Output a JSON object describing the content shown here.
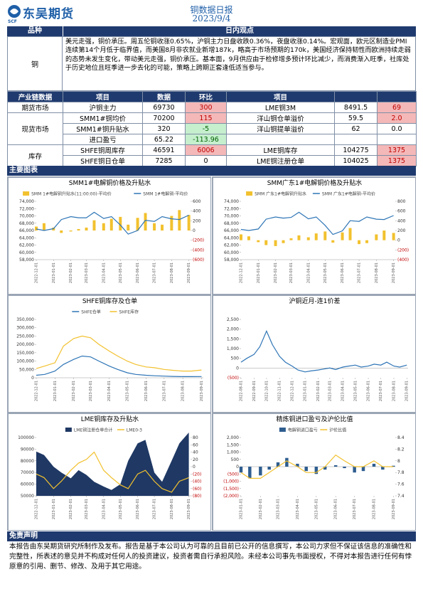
{
  "header": {
    "logo_text": "东吴期货",
    "logo_sub": "SCF",
    "title": "铜数据日报",
    "date": "2023/9/4"
  },
  "view": {
    "headers": [
      "品种",
      "日内观点"
    ],
    "commodity": "铜",
    "text": "美元走强，铜价承压。周五伦铜收涨0.65%，沪铜主力日盘收跌0.36%，夜盘收涨0.14%。宏观面，欧元区制造业PMI连续第14个月低于临界值，而美国8月非农就业新增187k，略高于市场预期的170k，美国经济保持韧性而欧洲持续走弱的态势未发生变化，带动美元走强，铜价承压。基本面，9月供应由于检修增多预计环比减少，而消费渐入旺季，社库处于历史地位且旺季进一步去化的可能，策略上跨期正套逢低适当参与。"
  },
  "industry_table": {
    "headers": [
      "产业链数据",
      "项目",
      "数据",
      "环比",
      "项目"
    ],
    "up_color": "#f4b8b8",
    "up_text_color": "#c00000",
    "down_color": "#c6efce",
    "down_text_color": "#006100",
    "groups": [
      {
        "name": "期货市场",
        "rows": [
          [
            "沪铜主力",
            "69730",
            "300",
            "LME铜3M",
            "8491.5",
            "69"
          ]
        ]
      },
      {
        "name": "现货市场",
        "rows": [
          [
            "SMM1#铜均价",
            "70200",
            "115",
            "洋山铜仓单溢价",
            "59.5",
            "2.0"
          ],
          [
            "SMM1#铜升贴水",
            "320",
            "-5",
            "洋山铜提单溢价",
            "62",
            "0.0"
          ],
          [
            "进口盈亏",
            "65.22",
            "-113.96"
          ]
        ]
      },
      {
        "name": "库存",
        "rows": [
          [
            "SHFE铜周库存",
            "46591",
            "6006",
            "LME铜库存",
            "104275",
            "1375"
          ],
          [
            "SHFE铜日仓单",
            "7285",
            "0",
            "LME铜注册仓单",
            "104025",
            "1375"
          ]
        ]
      }
    ]
  },
  "charts_heading": "主要图表",
  "disclaimer": {
    "heading": "免责声明",
    "text": "本报告由东吴期货研究所制作及发布。报告是基于本公司认为可靠的且目前已公开的信息撰写，本公司力求但不保证该信息的准确性和完整性，所表述的意见并不构成对任何人的投资建议，投资者需自行承担风险。未经本公司事先书面授权，不得对本报告进行任何有悖原意的引用、删节、修改、及用于其它用途。"
  },
  "chart_data": [
    {
      "type": "combo",
      "title": "SMM1#电解铜价格及升贴水",
      "negative_tick_color": "#c00000",
      "x": [
        "2022-12-01",
        "2022-12-15",
        "2023-01-01",
        "2023-01-15",
        "2023-02-01",
        "2023-02-15",
        "2023-03-01",
        "2023-03-15",
        "2023-04-01",
        "2023-04-15",
        "2023-05-01",
        "2023-05-15",
        "2023-06-01",
        "2023-06-15",
        "2023-07-01",
        "2023-07-15",
        "2023-08-01",
        "2023-08-15",
        "2023-09-01"
      ],
      "xlim": [
        "2022-12-01",
        "2023-09-04"
      ],
      "xticks": [
        "2022-12-01",
        "2023-01-01",
        "2023-02-01",
        "2023-03-01",
        "2023-04-01",
        "2023-05-01",
        "2023-06-01",
        "2023-07-01",
        "2023-08-01",
        "2023-09-01"
      ],
      "ylim": [
        58000,
        74000
      ],
      "yticks": [
        {
          "value": 58000,
          "label": "58,000"
        },
        {
          "value": 60000,
          "label": "60,000"
        },
        {
          "value": 62000,
          "label": "62,000"
        },
        {
          "value": 64000,
          "label": "64,000"
        },
        {
          "value": 66000,
          "label": "66,000"
        },
        {
          "value": 68000,
          "label": "68,000"
        },
        {
          "value": 70000,
          "label": "70,000"
        },
        {
          "value": 72000,
          "label": "72,000"
        },
        {
          "value": 74000,
          "label": "74,000"
        }
      ],
      "y2lim": [
        -600,
        600
      ],
      "y2ticks": [
        {
          "value": -600,
          "label": "(600)"
        },
        {
          "value": -400,
          "label": "(400)"
        },
        {
          "value": -200,
          "label": "(200)"
        },
        0,
        200,
        400,
        600
      ],
      "series": [
        {
          "name": "SMM 1#电解铜升贴水(11:00:00)-平均价",
          "type": "bar",
          "axis": "y2",
          "color": "#f2c12e",
          "values": [
            80,
            150,
            60,
            -50,
            -20,
            30,
            60,
            210,
            150,
            240,
            280,
            120,
            260,
            360,
            150,
            120,
            300,
            420,
            320
          ]
        },
        {
          "name": "SMM 1#电解铜-平均价",
          "type": "line",
          "color": "#2e75b6",
          "values": [
            66400,
            66000,
            66500,
            69000,
            69800,
            69500,
            69500,
            71000,
            69300,
            69800,
            67500,
            65000,
            66000,
            68800,
            68500,
            69800,
            69200,
            69000,
            70200
          ]
        }
      ]
    },
    {
      "type": "combo",
      "title": "SMM广东1#电解铜价格及升贴水",
      "negative_tick_color": "#c00000",
      "x": [
        "2022-12-01",
        "2022-12-15",
        "2023-01-01",
        "2023-01-15",
        "2023-02-01",
        "2023-02-15",
        "2023-03-01",
        "2023-03-15",
        "2023-04-01",
        "2023-04-15",
        "2023-05-01",
        "2023-05-15",
        "2023-06-01",
        "2023-06-15",
        "2023-07-01",
        "2023-07-15",
        "2023-08-01",
        "2023-08-15",
        "2023-09-01"
      ],
      "xlim": [
        "2022-12-01",
        "2023-09-04"
      ],
      "xticks": [
        "2022-12-01",
        "2023-01-01",
        "2023-02-01",
        "2023-03-01",
        "2023-04-01",
        "2023-05-01",
        "2023-06-01",
        "2023-07-01",
        "2023-08-01",
        "2023-09-01"
      ],
      "ylim": [
        58000,
        74000
      ],
      "yticks": [
        {
          "value": 58000,
          "label": "58,000"
        },
        {
          "value": 60000,
          "label": "60,000"
        },
        {
          "value": 62000,
          "label": "62,000"
        },
        {
          "value": 64000,
          "label": "64,000"
        },
        {
          "value": 66000,
          "label": "66,000"
        },
        {
          "value": 68000,
          "label": "68,000"
        },
        {
          "value": 70000,
          "label": "70,000"
        },
        {
          "value": 72000,
          "label": "72,000"
        },
        {
          "value": 74000,
          "label": "74,000"
        }
      ],
      "y2lim": [
        -400,
        800
      ],
      "y2ticks": [
        {
          "value": -400,
          "label": "(400)"
        },
        {
          "value": -200,
          "label": "(200)"
        },
        0,
        200,
        400,
        600,
        800
      ],
      "series": [
        {
          "name": "SMM 广东1#电解铜升贴水",
          "type": "bar",
          "axis": "y2",
          "color": "#f2c12e",
          "values": [
            120,
            80,
            -40,
            -100,
            -120,
            -60,
            40,
            100,
            60,
            140,
            180,
            -50,
            160,
            250,
            -80,
            -60,
            120,
            200,
            150
          ]
        },
        {
          "name": "SMM 广东1#电解铜-平均价",
          "type": "line",
          "color": "#2e75b6",
          "values": [
            66300,
            66000,
            66400,
            69100,
            69700,
            69400,
            69600,
            71000,
            69200,
            69700,
            67400,
            64900,
            65900,
            68700,
            68500,
            69700,
            69100,
            69000,
            70100
          ]
        }
      ]
    },
    {
      "type": "combo",
      "title": "SHFE铜库存及仓单",
      "negative_tick_color": "#c00000",
      "x": [
        "2022-12-01",
        "2022-12-15",
        "2023-01-01",
        "2023-01-15",
        "2023-02-01",
        "2023-02-15",
        "2023-03-01",
        "2023-03-15",
        "2023-04-01",
        "2023-04-15",
        "2023-05-01",
        "2023-05-15",
        "2023-06-01",
        "2023-06-15",
        "2023-07-01",
        "2023-07-15",
        "2023-08-01",
        "2023-08-15",
        "2023-09-01"
      ],
      "xlim": [
        "2022-12-01",
        "2023-09-04"
      ],
      "xticks": [
        "2022-12-01",
        "2023-01-01",
        "2023-02-01",
        "2023-03-01",
        "2023-04-01",
        "2023-05-01",
        "2023-06-01",
        "2023-07-01",
        "2023-08-01",
        "2023-09-01"
      ],
      "ylim": [
        0,
        350000
      ],
      "yticks": [
        0,
        {
          "value": 50000,
          "label": "50,000"
        },
        {
          "value": 100000,
          "label": "100,000"
        },
        {
          "value": 150000,
          "label": "150,000"
        },
        {
          "value": 200000,
          "label": "200,000"
        },
        {
          "value": 250000,
          "label": "250,000"
        },
        {
          "value": 300000,
          "label": "300,000"
        },
        {
          "value": 350000,
          "label": "350,000"
        }
      ],
      "series": [
        {
          "name": "SHFE仓单",
          "type": "line",
          "color": "#2e75b6",
          "values": [
            15000,
            20000,
            40000,
            80000,
            110000,
            130000,
            125000,
            100000,
            70000,
            50000,
            30000,
            20000,
            15000,
            12000,
            10000,
            8000,
            7000,
            7000,
            7285
          ]
        },
        {
          "name": "SHFE库存",
          "type": "line",
          "color": "#f2c12e",
          "values": [
            55000,
            70000,
            90000,
            190000,
            235000,
            250000,
            240000,
            200000,
            160000,
            130000,
            100000,
            80000,
            65000,
            60000,
            50000,
            45000,
            40000,
            40000,
            46591
          ]
        }
      ]
    },
    {
      "type": "combo",
      "title": "沪铜近月-连1价差",
      "negative_tick_color": "#c00000",
      "x": [
        "2022-08-01",
        "2022-08-15",
        "2022-09-01",
        "2022-09-15",
        "2022-10-01",
        "2022-10-15",
        "2022-11-01",
        "2022-11-15",
        "2022-12-01",
        "2022-12-15",
        "2023-01-01",
        "2023-01-15",
        "2023-02-01",
        "2023-02-15",
        "2023-03-01",
        "2023-03-15",
        "2023-04-01",
        "2023-04-15",
        "2023-05-01",
        "2023-05-15",
        "2023-06-01",
        "2023-06-15",
        "2023-07-01",
        "2023-07-15",
        "2023-08-01",
        "2023-08-15",
        "2023-09-01"
      ],
      "xlim": [
        "2022-08-01",
        "2023-09-04"
      ],
      "xticks": [
        "2022-08-01",
        "2022-09-01",
        "2022-10-01",
        "2022-11-01",
        "2022-12-01",
        "2023-01-01",
        "2023-02-01",
        "2023-03-01",
        "2023-04-01",
        "2023-05-01",
        "2023-06-01",
        "2023-07-01",
        "2023-08-01",
        "2023-09-01"
      ],
      "ylim": [
        -500,
        2500
      ],
      "yticks": [
        {
          "value": -500,
          "label": "(500)"
        },
        0,
        500,
        {
          "value": 1000,
          "label": "1,000"
        },
        {
          "value": 1500,
          "label": "1,500"
        },
        {
          "value": 2000,
          "label": "2,000"
        },
        {
          "value": 2500,
          "label": "2,500"
        }
      ],
      "series": [
        {
          "type": "line",
          "color": "#2e75b6",
          "values": [
            300,
            500,
            700,
            1100,
            1900,
            1200,
            600,
            300,
            100,
            -100,
            -200,
            -150,
            -100,
            -50,
            0,
            -80,
            50,
            100,
            150,
            50,
            100,
            200,
            150,
            300,
            100,
            50,
            150
          ]
        }
      ]
    },
    {
      "type": "combo",
      "title": "LME铜库存及升贴水",
      "negative_tick_color": "#c00000",
      "x": [
        "2022-12-01",
        "2022-12-15",
        "2023-01-01",
        "2023-01-15",
        "2023-02-01",
        "2023-02-15",
        "2023-03-01",
        "2023-03-15",
        "2023-04-01",
        "2023-04-15",
        "2023-05-01",
        "2023-05-15",
        "2023-06-01",
        "2023-06-15",
        "2023-07-01",
        "2023-07-15",
        "2023-08-01",
        "2023-08-15",
        "2023-09-01"
      ],
      "xlim": [
        "2022-12-01",
        "2023-09-04"
      ],
      "xticks": [
        "2022-12-01",
        "2023-01-01",
        "2023-02-01",
        "2023-03-01",
        "2023-04-01",
        "2023-05-01",
        "2023-06-01",
        "2023-07-01",
        "2023-08-01",
        "2023-09-01"
      ],
      "ylim": [
        50000,
        100000
      ],
      "yticks": [
        50000,
        60000,
        70000,
        80000,
        90000,
        100000
      ],
      "y2lim": [
        -80,
        80
      ],
      "y2ticks": [
        {
          "value": -80,
          "label": "(80)"
        },
        {
          "value": -60,
          "label": "(60)"
        },
        {
          "value": -40,
          "label": "(40)"
        },
        {
          "value": -20,
          "label": "(20)"
        },
        0,
        20,
        40,
        60,
        80
      ],
      "series": [
        {
          "name": "LME铜注册仓单合计",
          "type": "area",
          "color": "#1f3864",
          "values": [
            88000,
            85000,
            75000,
            70000,
            65000,
            72000,
            68000,
            62000,
            58000,
            55000,
            60000,
            80000,
            95000,
            98000,
            70000,
            62000,
            80000,
            95000,
            104275
          ]
        },
        {
          "name": "LME0-3",
          "type": "line",
          "axis": "y2",
          "color": "#f2c12e",
          "values": [
            -20,
            -30,
            -60,
            -40,
            -10,
            10,
            20,
            40,
            -10,
            -30,
            -50,
            -60,
            -20,
            -10,
            -40,
            -60,
            -70,
            -40,
            -30
          ]
        }
      ]
    },
    {
      "type": "combo",
      "title": "精炼铜进口盈亏及沪伦比值",
      "negative_tick_color": "#c00000",
      "x": [
        "2023-01-01",
        "2023-01-15",
        "2023-02-01",
        "2023-02-15",
        "2023-03-01",
        "2023-03-15",
        "2023-04-01",
        "2023-04-15",
        "2023-05-01",
        "2023-05-15",
        "2023-06-01",
        "2023-06-15",
        "2023-07-01",
        "2023-07-15",
        "2023-08-01",
        "2023-08-15",
        "2023-09-01"
      ],
      "xlim": [
        "2023-01-01",
        "2023-09-04"
      ],
      "xticks": [
        "2023-01-01",
        "2023-02-01",
        "2023-03-01",
        "2023-04-01",
        "2023-05-01",
        "2023-06-01",
        "2023-07-01",
        "2023-08-01",
        "2023-09-01"
      ],
      "ylim": [
        -2000,
        2000
      ],
      "yticks": [
        {
          "value": -2000,
          "label": "(2,000)"
        },
        {
          "value": -1500,
          "label": "(1,500)"
        },
        {
          "value": -1000,
          "label": "(1,000)"
        },
        {
          "value": -500,
          "label": "(500)"
        },
        0,
        500,
        {
          "value": 1000,
          "label": "1,000"
        },
        {
          "value": 1500,
          "label": "1,500"
        },
        {
          "value": 2000,
          "label": "2,000"
        }
      ],
      "y2lim": [
        7.4,
        8.4
      ],
      "y2ticks": [
        7.4,
        7.6,
        7.8,
        8,
        8.2,
        8.4
      ],
      "series": [
        {
          "name": "电解铜进口盈亏",
          "type": "bar",
          "color": "#2e5d8f",
          "values": [
            -400,
            -800,
            -600,
            -200,
            300,
            600,
            200,
            -300,
            -500,
            -200,
            100,
            -100,
            -400,
            -300,
            200,
            -200,
            65
          ]
        },
        {
          "name": "沪伦比值",
          "type": "line",
          "axis": "y2",
          "color": "#f2c12e",
          "values": [
            7.8,
            7.7,
            7.7,
            7.8,
            7.9,
            8.0,
            7.9,
            7.8,
            7.8,
            7.9,
            8.1,
            8.0,
            7.9,
            7.9,
            8.0,
            7.9,
            7.9
          ]
        }
      ]
    }
  ]
}
